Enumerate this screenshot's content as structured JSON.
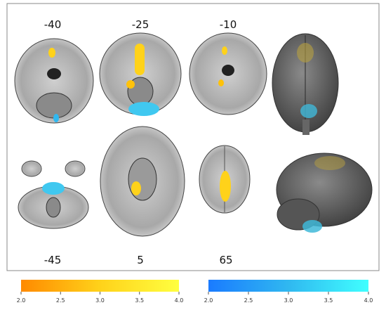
{
  "slice_labels": {
    "top": [
      "-40",
      "-25",
      "-10"
    ],
    "bottom": [
      "-45",
      "5",
      "65"
    ]
  },
  "colorbars": [
    {
      "colors": [
        "#ff8a00",
        "#ffd21a",
        "#ffff40"
      ],
      "ticks": [
        {
          "value": 2,
          "label": "2.0"
        },
        {
          "value": 2.5,
          "label": "2.5"
        },
        {
          "value": 3,
          "label": "3.0"
        },
        {
          "value": 3.5,
          "label": "3.5"
        },
        {
          "value": 4,
          "label": "4.0"
        }
      ]
    },
    {
      "colors": [
        "#1a7bff",
        "#30b8f0",
        "#40ffff"
      ],
      "ticks": [
        {
          "value": 2,
          "label": "2.0"
        },
        {
          "value": 2.5,
          "label": "2.5"
        },
        {
          "value": 3,
          "label": "3.0"
        },
        {
          "value": 3.5,
          "label": "3.5"
        },
        {
          "value": 4,
          "label": "4.0"
        }
      ]
    }
  ]
}
